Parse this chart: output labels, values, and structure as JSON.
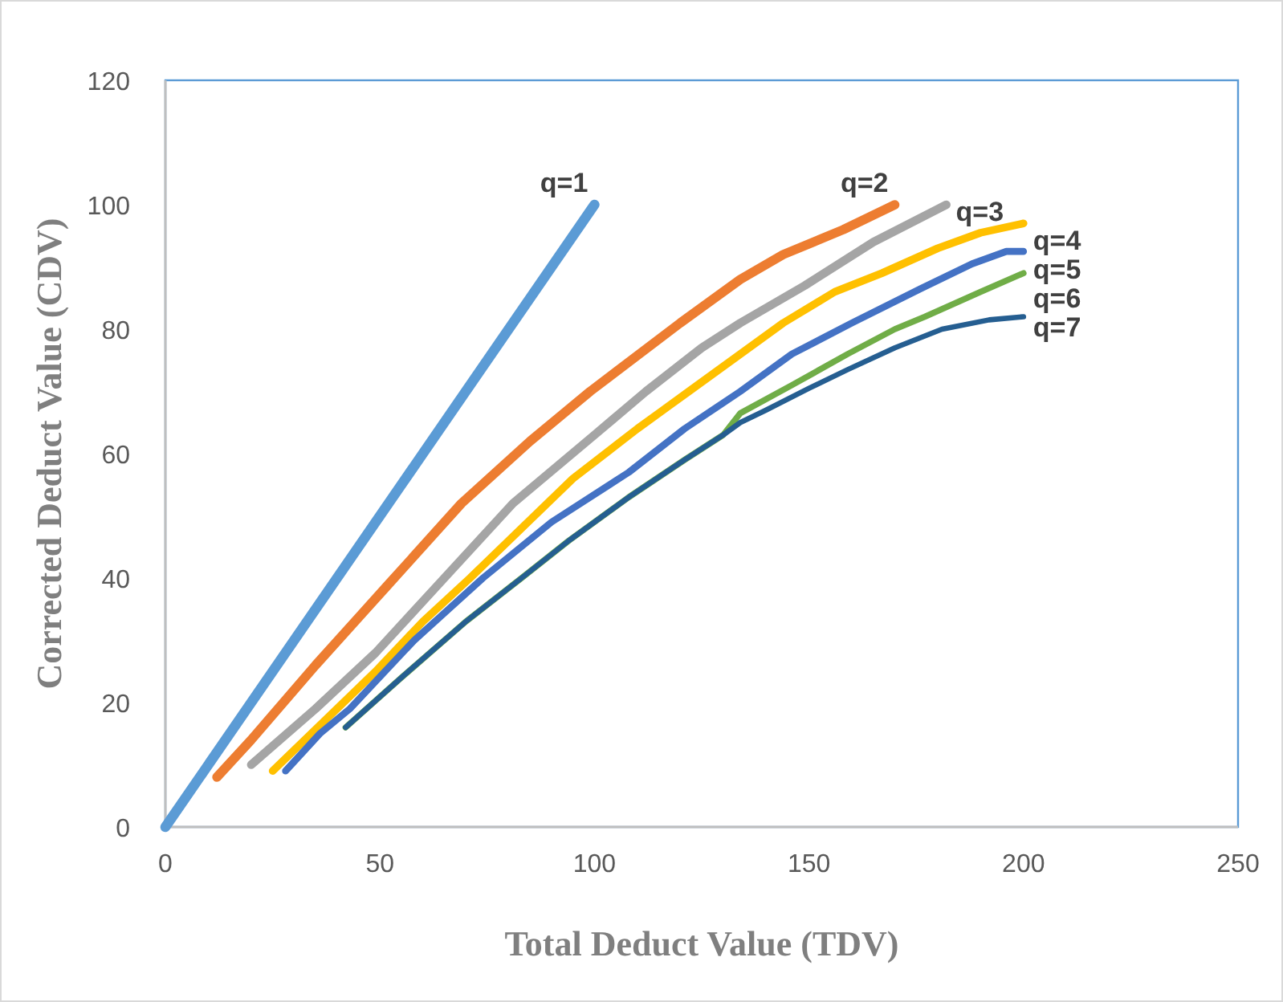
{
  "chart_data": {
    "type": "line",
    "xlabel": "Total Deduct Value (TDV)",
    "ylabel": "Corrected Deduct Value (CDV)",
    "xlim": [
      0,
      250
    ],
    "ylim": [
      0,
      120
    ],
    "xticks": [
      0,
      50,
      100,
      150,
      200,
      250
    ],
    "yticks": [
      0,
      20,
      40,
      60,
      80,
      100,
      120
    ],
    "grid": false,
    "marker": "none",
    "line_style": "solid",
    "series": [
      {
        "name": "q=1",
        "color": "#5b9bd5",
        "x": [
          0,
          100
        ],
        "values": [
          0,
          100
        ]
      },
      {
        "name": "q=2",
        "color": "#ed7d31",
        "x": [
          12,
          20,
          35,
          52,
          69,
          85,
          99,
          120,
          134,
          144,
          158,
          170
        ],
        "values": [
          8,
          14,
          26,
          39,
          52,
          62,
          70,
          81,
          88,
          92,
          96,
          100
        ]
      },
      {
        "name": "q=3",
        "color": "#a5a5a5",
        "x": [
          20,
          35,
          49,
          65,
          81,
          100,
          112,
          125,
          134,
          149,
          165,
          182
        ],
        "values": [
          10,
          19,
          28,
          40,
          52,
          63,
          70,
          77,
          81,
          87,
          94,
          100
        ]
      },
      {
        "name": "q=4",
        "color": "#ffc000",
        "x": [
          25,
          37,
          49,
          60,
          71,
          83,
          95,
          110,
          122,
          134,
          144,
          156,
          167,
          180,
          190,
          200
        ],
        "values": [
          9,
          17,
          25,
          33,
          40,
          48,
          56,
          64,
          70,
          76,
          81,
          86,
          89,
          93,
          95.5,
          97
        ]
      },
      {
        "name": "q=5",
        "color": "#4472c4",
        "x": [
          28,
          36,
          43,
          58,
          74,
          90,
          108,
          121,
          134,
          146,
          160,
          176,
          188,
          196,
          200
        ],
        "values": [
          9,
          15,
          19,
          30,
          40,
          49,
          57,
          64,
          70,
          76,
          81,
          86.5,
          90.5,
          92.5,
          92.5
        ]
      },
      {
        "name": "q=6",
        "color": "#70ad47",
        "x": [
          42,
          55,
          70,
          83,
          94,
          108,
          121,
          130,
          134,
          146,
          159,
          170,
          177,
          190,
          200
        ],
        "values": [
          16,
          24,
          33,
          40,
          46,
          53,
          59,
          63,
          66.5,
          71,
          76,
          80,
          82,
          86,
          89
        ]
      },
      {
        "name": "q=7",
        "color": "#255e91",
        "x": [
          42,
          55,
          70,
          83,
          94,
          108,
          121,
          130,
          134,
          140,
          150,
          159,
          170,
          181,
          192,
          200
        ],
        "values": [
          16,
          24,
          33,
          40,
          46,
          53,
          59,
          63,
          65,
          67,
          70.5,
          73.5,
          77,
          80,
          81.5,
          82
        ]
      }
    ]
  }
}
